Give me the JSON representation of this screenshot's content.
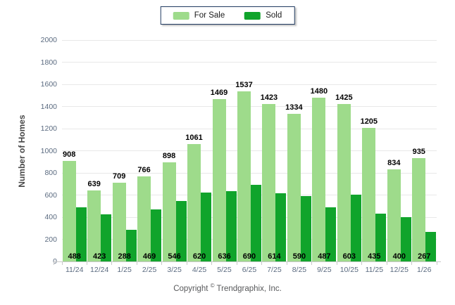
{
  "legend": {
    "items": [
      {
        "label": "For Sale",
        "color": "#9edb8b"
      },
      {
        "label": "Sold",
        "color": "#10a42b"
      }
    ]
  },
  "footer": {
    "copyright_prefix": "Copyright",
    "copyright_symbol": "©",
    "copyright_suffix": "Trendgraphix, Inc."
  },
  "colors": {
    "for_sale": "#9edb8b",
    "sold": "#10a42b",
    "gridline": "#e8e8e8",
    "axis_line": "#c8c8c8",
    "tick_label": "#5b6b80",
    "value_label": "#000000",
    "legend_border": "#203a60"
  },
  "chart_data": {
    "type": "bar",
    "title": "",
    "categories": [
      "11/24",
      "12/24",
      "1/25",
      "2/25",
      "3/25",
      "4/25",
      "5/25",
      "6/25",
      "7/25",
      "8/25",
      "9/25",
      "10/25",
      "11/25",
      "12/25",
      "1/26"
    ],
    "series": [
      {
        "name": "For Sale",
        "color": "#9edb8b",
        "label_position": "above-bar",
        "values": [
          908,
          639,
          709,
          766,
          898,
          1061,
          1469,
          1537,
          1423,
          1334,
          1480,
          1425,
          1205,
          834,
          935
        ]
      },
      {
        "name": "Sold",
        "color": "#10a42b",
        "label_position": "inside-bottom",
        "values": [
          488,
          423,
          288,
          469,
          546,
          620,
          636,
          690,
          614,
          590,
          487,
          603,
          435,
          400,
          267
        ]
      }
    ],
    "xlabel": "",
    "ylabel": "Number of Homes",
    "ylim": [
      0,
      2000
    ],
    "ytick_step": 200,
    "grid": true,
    "legend_position": "top-center"
  }
}
